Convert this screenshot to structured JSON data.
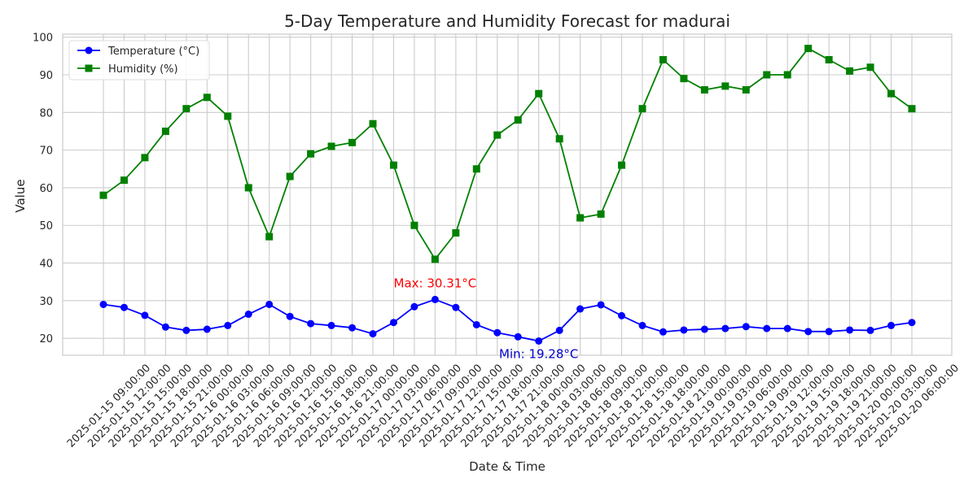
{
  "chart_data": {
    "type": "line",
    "title": "5-Day Temperature and Humidity Forecast for madurai",
    "xlabel": "Date & Time",
    "ylabel": "Value",
    "ylim": [
      15.5,
      100.8
    ],
    "yticks": [
      20,
      30,
      40,
      50,
      60,
      70,
      80,
      90,
      100
    ],
    "grid": true,
    "legend_position": "top-left",
    "categories": [
      "2025-01-15 09:00:00",
      "2025-01-15 12:00:00",
      "2025-01-15 15:00:00",
      "2025-01-15 18:00:00",
      "2025-01-15 21:00:00",
      "2025-01-16 00:00:00",
      "2025-01-16 03:00:00",
      "2025-01-16 06:00:00",
      "2025-01-16 09:00:00",
      "2025-01-16 12:00:00",
      "2025-01-16 15:00:00",
      "2025-01-16 18:00:00",
      "2025-01-16 21:00:00",
      "2025-01-17 00:00:00",
      "2025-01-17 03:00:00",
      "2025-01-17 06:00:00",
      "2025-01-17 09:00:00",
      "2025-01-17 12:00:00",
      "2025-01-17 15:00:00",
      "2025-01-17 18:00:00",
      "2025-01-17 21:00:00",
      "2025-01-18 00:00:00",
      "2025-01-18 03:00:00",
      "2025-01-18 06:00:00",
      "2025-01-18 09:00:00",
      "2025-01-18 12:00:00",
      "2025-01-18 15:00:00",
      "2025-01-18 18:00:00",
      "2025-01-18 21:00:00",
      "2025-01-19 00:00:00",
      "2025-01-19 03:00:00",
      "2025-01-19 06:00:00",
      "2025-01-19 09:00:00",
      "2025-01-19 12:00:00",
      "2025-01-19 15:00:00",
      "2025-01-19 18:00:00",
      "2025-01-19 21:00:00",
      "2025-01-20 00:00:00",
      "2025-01-20 03:00:00",
      "2025-01-20 06:00:00"
    ],
    "series": [
      {
        "name": "Temperature (°C)",
        "color": "#0000ff",
        "marker": "circle",
        "values": [
          29.0,
          28.2,
          26.1,
          23.0,
          22.1,
          22.4,
          23.4,
          26.4,
          29.0,
          25.8,
          23.9,
          23.4,
          22.8,
          21.2,
          24.2,
          28.4,
          30.31,
          28.2,
          23.6,
          21.5,
          20.4,
          19.28,
          22.1,
          27.8,
          28.9,
          26.0,
          23.4,
          21.7,
          22.2,
          22.4,
          22.6,
          23.1,
          22.6,
          22.6,
          21.8,
          21.8,
          22.2,
          22.1,
          23.4,
          24.2
        ]
      },
      {
        "name": "Humidity (%)",
        "color": "#008000",
        "marker": "square",
        "values": [
          58,
          62,
          68,
          75,
          81,
          84,
          79,
          60,
          47,
          63,
          69,
          71,
          72,
          77,
          66,
          50,
          41,
          48,
          65,
          74,
          78,
          85,
          73,
          52,
          53,
          66,
          81,
          94,
          89,
          86,
          87,
          86,
          90,
          90,
          97,
          94,
          91,
          92,
          85,
          81
        ]
      }
    ],
    "annotations": [
      {
        "text": "Max: 30.31°C",
        "series": 0,
        "index": 16,
        "color": "#ff0000",
        "position": "above"
      },
      {
        "text": "Min: 19.28°C",
        "series": 0,
        "index": 21,
        "color": "#0000cd",
        "position": "below"
      }
    ]
  }
}
